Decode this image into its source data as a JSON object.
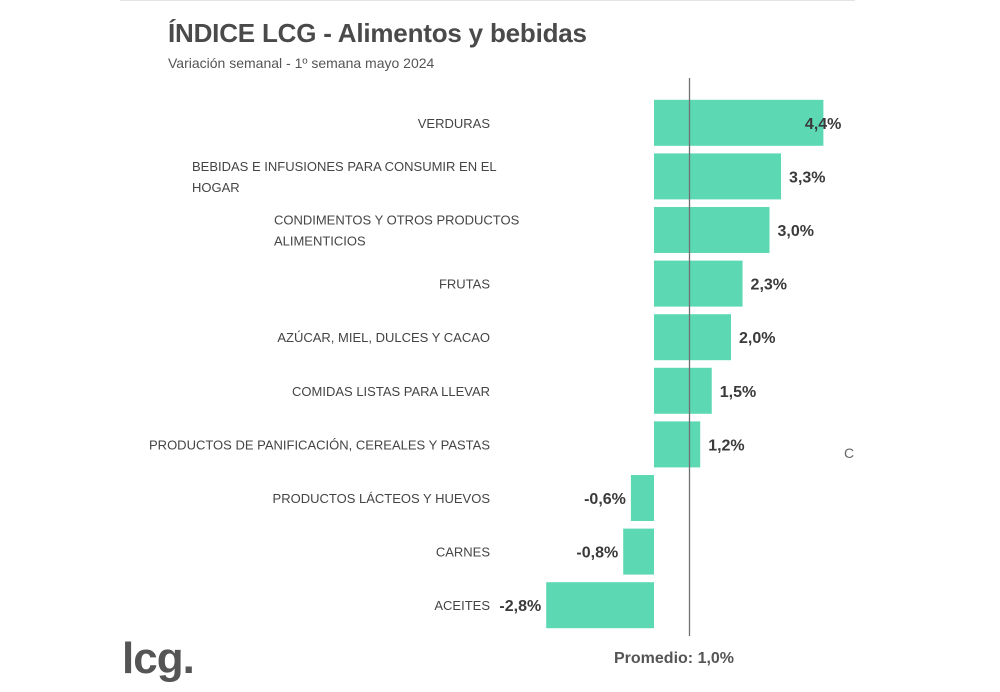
{
  "chart_data": {
    "type": "bar",
    "orientation": "horizontal",
    "title": "ÍNDICE LCG - Alimentos y bebidas",
    "subtitle": "Variación semanal - 1º semana mayo 2024",
    "categories": [
      [
        "VERDURAS"
      ],
      [
        "BEBIDAS E INFUSIONES PARA CONSUMIR EN EL",
        "HOGAR"
      ],
      [
        "CONDIMENTOS Y OTROS PRODUCTOS",
        "ALIMENTICIOS"
      ],
      [
        "FRUTAS"
      ],
      [
        "AZÚCAR, MIEL, DULCES Y CACAO"
      ],
      [
        "COMIDAS LISTAS PARA LLEVAR"
      ],
      [
        "PRODUCTOS DE PANIFICACIÓN, CEREALES Y PASTAS"
      ],
      [
        "PRODUCTOS LÁCTEOS Y HUEVOS"
      ],
      [
        "CARNES"
      ],
      [
        "ACEITES"
      ]
    ],
    "values": [
      4.4,
      3.3,
      3.0,
      2.3,
      2.0,
      1.5,
      1.2,
      -0.6,
      -0.8,
      -2.8
    ],
    "value_labels": [
      "4,4%",
      "3,3%",
      "3,0%",
      "2,3%",
      "2,0%",
      "1,5%",
      "1,2%",
      "-0,6%",
      "-0,8%",
      "-2,8%"
    ],
    "average": {
      "value": 1.0,
      "label": "Promedio: 1,0%"
    },
    "bar_color": "#5cd9b3",
    "reference_line_color": "#707070",
    "xlim": [
      -2.8,
      4.4
    ],
    "grid": false,
    "legend": "none"
  },
  "logo_text": "lcg.",
  "stray_glyph": "C"
}
